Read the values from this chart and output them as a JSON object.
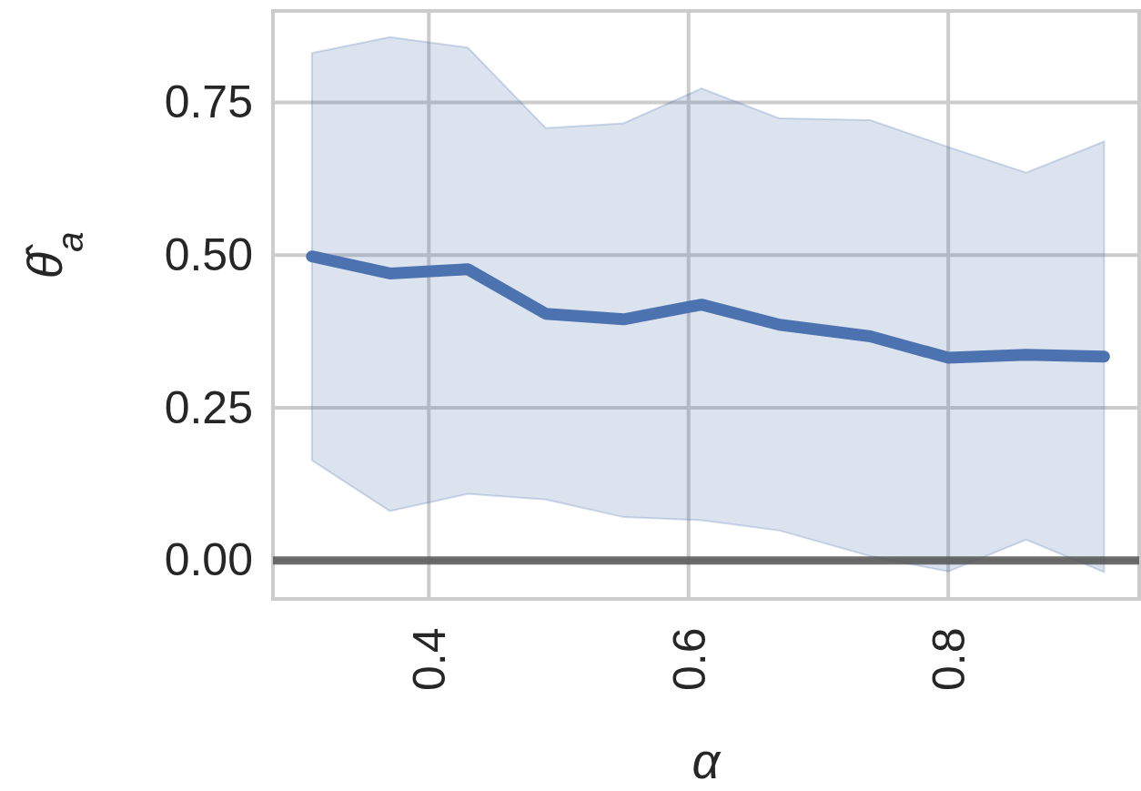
{
  "chart_data": {
    "type": "line",
    "xlabel": "α",
    "ylabel": "θ̂$_{a}$",
    "xlim": [
      0.28,
      0.947
    ],
    "xticks": [
      0.4,
      0.6,
      0.8
    ],
    "ylim": [
      -0.063,
      0.9
    ],
    "yticks": [
      {
        "value": 0,
        "label": "0.00"
      },
      0.25,
      {
        "value": 0.5,
        "label": "0.50"
      },
      0.75
    ],
    "grid": true,
    "x": [
      0.31,
      0.37,
      0.43,
      0.49,
      0.55,
      0.61,
      0.67,
      0.74,
      0.8,
      0.86,
      0.92
    ],
    "series": [
      {
        "color": "#4c72b0",
        "values": [
          0.498,
          0.47,
          0.477,
          0.404,
          0.395,
          0.419,
          0.386,
          0.367,
          0.332,
          0.337,
          0.334
        ],
        "lower": [
          0.164,
          0.081,
          0.109,
          0.1,
          0.071,
          0.066,
          0.049,
          0.007,
          -0.018,
          0.034,
          -0.019
        ],
        "upper": [
          0.831,
          0.857,
          0.84,
          0.708,
          0.716,
          0.773,
          0.724,
          0.721,
          0.677,
          0.635,
          0.686
        ]
      }
    ],
    "ref_lines": [
      {
        "axis": "y",
        "value": 0,
        "color": "#555555"
      }
    ]
  }
}
